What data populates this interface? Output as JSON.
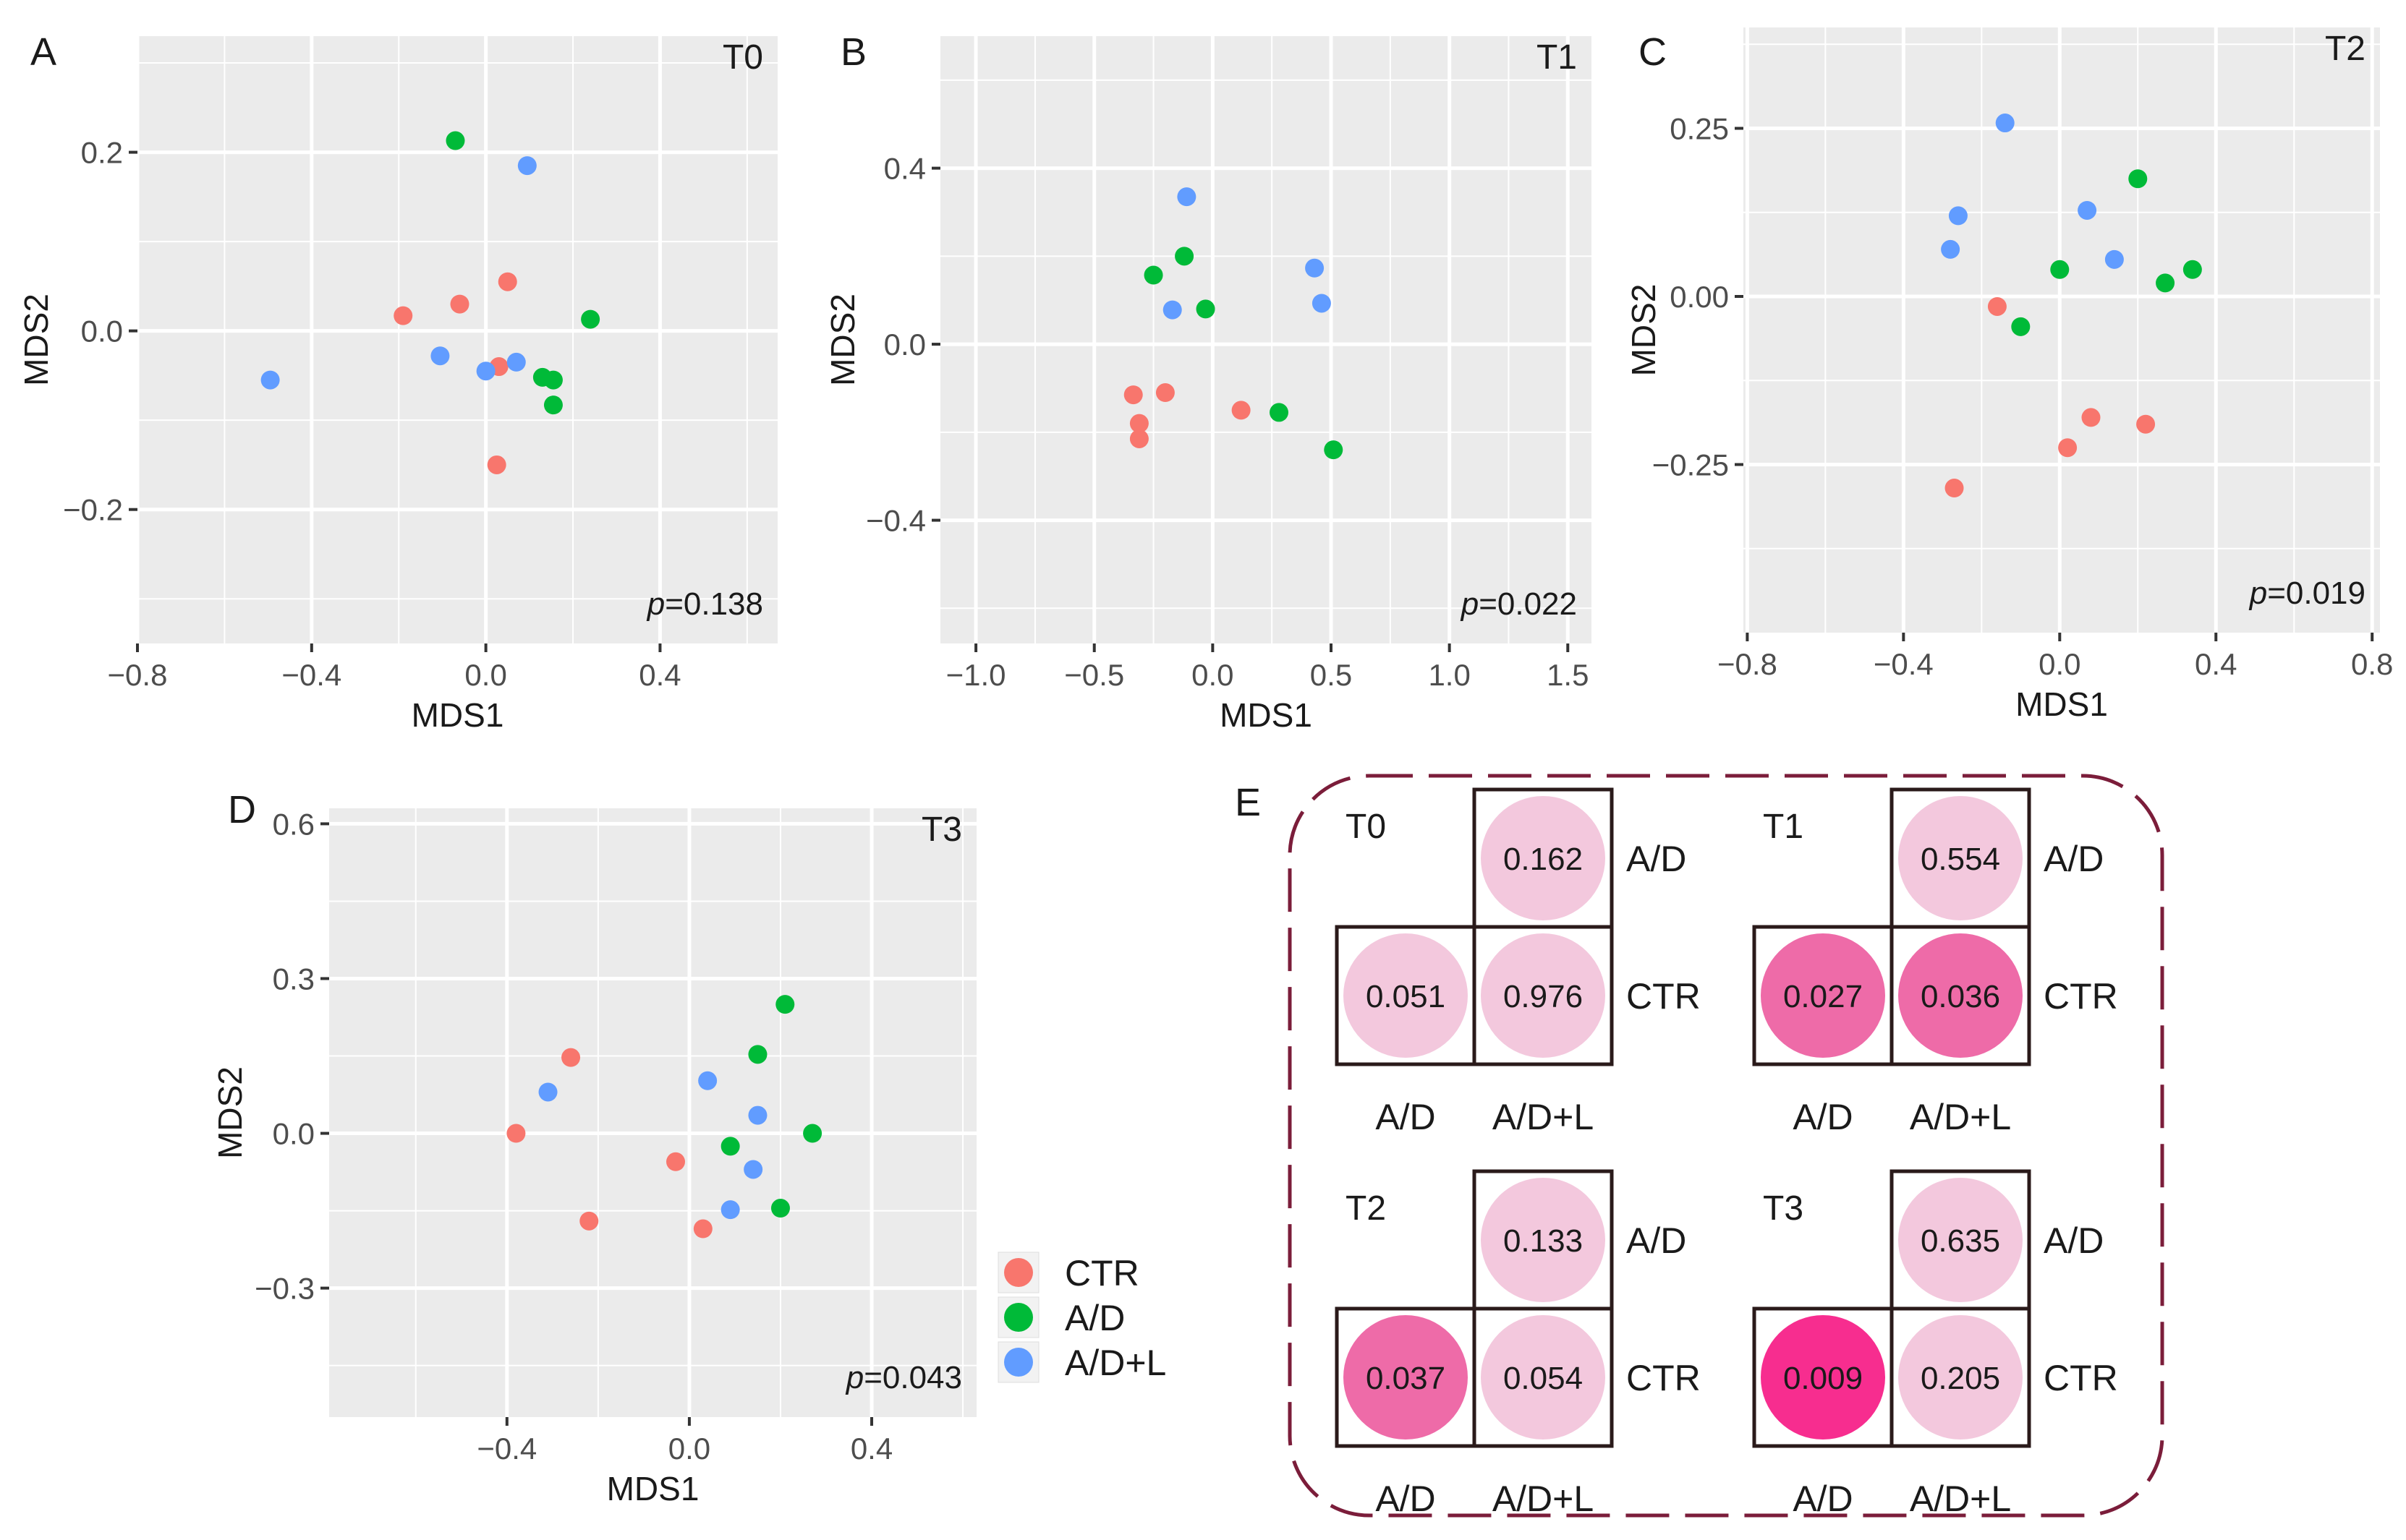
{
  "colors": {
    "CTR": "#F8766D",
    "A/D": "#00BA38",
    "A/D+L": "#619CFF"
  },
  "legend": {
    "items": [
      "CTR",
      "A/D",
      "A/D+L"
    ]
  },
  "chart_data": [
    {
      "type": "scatter",
      "panel": "A",
      "label": "T0",
      "p_prefix": "p",
      "p_value": "=0.138",
      "xlabel": "MDS1",
      "ylabel": "MDS2",
      "xlim": [
        -0.8,
        0.67
      ],
      "ylim": [
        -0.35,
        0.33
      ],
      "xticks": [
        -0.8,
        -0.4,
        0.0,
        0.4
      ],
      "xtick_labels": [
        "−0.8",
        "−0.4",
        "0.0",
        "0.4"
      ],
      "yticks": [
        -0.2,
        0.0,
        0.2
      ],
      "ytick_labels": [
        "−0.2",
        "0.0",
        "0.2"
      ],
      "series": [
        {
          "name": "CTR",
          "points": [
            [
              -0.19,
              0.017
            ],
            [
              -0.06,
              0.03
            ],
            [
              0.05,
              0.055
            ],
            [
              0.03,
              -0.04
            ],
            [
              0.025,
              -0.15
            ]
          ]
        },
        {
          "name": "A/D",
          "points": [
            [
              -0.07,
              0.213
            ],
            [
              0.24,
              0.013
            ],
            [
              0.13,
              -0.052
            ],
            [
              0.155,
              -0.055
            ],
            [
              0.155,
              -0.083
            ]
          ]
        },
        {
          "name": "A/D+L",
          "points": [
            [
              0.095,
              0.185
            ],
            [
              -0.105,
              -0.028
            ],
            [
              0.0,
              -0.045
            ],
            [
              0.07,
              -0.035
            ],
            [
              -0.495,
              -0.055
            ]
          ]
        }
      ]
    },
    {
      "type": "scatter",
      "panel": "B",
      "label": "T1",
      "p_prefix": "p",
      "p_value": "=0.022",
      "xlabel": "MDS1",
      "ylabel": "MDS2",
      "xlim": [
        -1.15,
        1.6
      ],
      "ylim": [
        -0.68,
        0.7
      ],
      "xticks": [
        -1.0,
        -0.5,
        0.0,
        0.5,
        1.0,
        1.5
      ],
      "xtick_labels": [
        "−1.0",
        "−0.5",
        "0.0",
        "0.5",
        "1.0",
        "1.5"
      ],
      "yticks": [
        -0.4,
        0.0,
        0.4
      ],
      "ytick_labels": [
        "−0.4",
        "0.0",
        "0.4"
      ],
      "series": [
        {
          "name": "CTR",
          "points": [
            [
              -0.335,
              -0.115
            ],
            [
              -0.31,
              -0.18
            ],
            [
              -0.31,
              -0.215
            ],
            [
              -0.2,
              -0.11
            ],
            [
              0.12,
              -0.15
            ]
          ]
        },
        {
          "name": "A/D",
          "points": [
            [
              -0.25,
              0.157
            ],
            [
              -0.12,
              0.2
            ],
            [
              -0.03,
              0.08
            ],
            [
              0.28,
              -0.155
            ],
            [
              0.51,
              -0.24
            ]
          ]
        },
        {
          "name": "A/D+L",
          "points": [
            [
              -0.11,
              0.335
            ],
            [
              -0.17,
              0.078
            ],
            [
              0.43,
              0.173
            ],
            [
              0.46,
              0.093
            ]
          ]
        }
      ]
    },
    {
      "type": "scatter",
      "panel": "C",
      "label": "T2",
      "p_prefix": "p",
      "p_value": "=0.019",
      "xlabel": "MDS1",
      "ylabel": "MDS2",
      "xlim": [
        -0.81,
        0.82
      ],
      "ylim": [
        -0.5,
        0.4
      ],
      "xticks": [
        -0.8,
        -0.4,
        0.0,
        0.4,
        0.8
      ],
      "xtick_labels": [
        "−0.8",
        "−0.4",
        "0.0",
        "0.4",
        "0.8"
      ],
      "yticks": [
        -0.25,
        0.0,
        0.25
      ],
      "ytick_labels": [
        "−0.25",
        "0.00",
        "0.25"
      ],
      "series": [
        {
          "name": "CTR",
          "points": [
            [
              -0.16,
              -0.015
            ],
            [
              -0.27,
              -0.285
            ],
            [
              0.02,
              -0.225
            ],
            [
              0.08,
              -0.18
            ],
            [
              0.22,
              -0.19
            ]
          ]
        },
        {
          "name": "A/D",
          "points": [
            [
              0.2,
              0.175
            ],
            [
              0.0,
              0.04
            ],
            [
              -0.1,
              -0.045
            ],
            [
              0.27,
              0.02
            ],
            [
              0.34,
              0.04
            ]
          ]
        },
        {
          "name": "A/D+L",
          "points": [
            [
              -0.14,
              0.258
            ],
            [
              -0.26,
              0.12
            ],
            [
              -0.28,
              0.07
            ],
            [
              0.07,
              0.128
            ],
            [
              0.14,
              0.055
            ]
          ]
        }
      ]
    },
    {
      "type": "scatter",
      "panel": "D",
      "label": "T3",
      "p_prefix": "p",
      "p_value": "=0.043",
      "xlabel": "MDS1",
      "ylabel": "MDS2",
      "xlim": [
        -0.79,
        0.63
      ],
      "ylim": [
        -0.55,
        0.63
      ],
      "xticks": [
        -0.4,
        0.0,
        0.4
      ],
      "xtick_labels": [
        "−0.4",
        "0.0",
        "0.4"
      ],
      "yticks": [
        -0.3,
        0.0,
        0.3,
        0.6
      ],
      "ytick_labels": [
        "−0.3",
        "0.0",
        "0.3",
        "0.6"
      ],
      "series": [
        {
          "name": "CTR",
          "points": [
            [
              -0.26,
              0.147
            ],
            [
              -0.38,
              0.0
            ],
            [
              -0.22,
              -0.17
            ],
            [
              -0.03,
              -0.055
            ],
            [
              0.03,
              -0.185
            ]
          ]
        },
        {
          "name": "A/D",
          "points": [
            [
              0.21,
              0.25
            ],
            [
              0.15,
              0.153
            ],
            [
              0.09,
              -0.025
            ],
            [
              0.27,
              0.0
            ],
            [
              0.2,
              -0.145
            ]
          ]
        },
        {
          "name": "A/D+L",
          "points": [
            [
              -0.31,
              0.08
            ],
            [
              0.04,
              0.102
            ],
            [
              0.15,
              0.035
            ],
            [
              0.14,
              -0.07
            ],
            [
              0.09,
              -0.148
            ]
          ]
        }
      ]
    }
  ],
  "panel_e": {
    "letter": "E",
    "matrices": [
      {
        "time": "T0",
        "ad_vs_adl": "0.162",
        "ctr_vs_ad": "0.051",
        "ctr_vs_adl": "0.976",
        "row_top": "A/D",
        "row_bottom": "CTR",
        "col_left": "A/D",
        "col_right": "A/D+L"
      },
      {
        "time": "T1",
        "ad_vs_adl": "0.554",
        "ctr_vs_ad": "0.027",
        "ctr_vs_adl": "0.036",
        "row_top": "A/D",
        "row_bottom": "CTR",
        "col_left": "A/D",
        "col_right": "A/D+L"
      },
      {
        "time": "T2",
        "ad_vs_adl": "0.133",
        "ctr_vs_ad": "0.037",
        "ctr_vs_adl": "0.054",
        "row_top": "A/D",
        "row_bottom": "CTR",
        "col_left": "A/D",
        "col_right": "A/D+L"
      },
      {
        "time": "T3",
        "ad_vs_adl": "0.635",
        "ctr_vs_ad": "0.009",
        "ctr_vs_adl": "0.205",
        "row_top": "A/D",
        "row_bottom": "CTR",
        "col_left": "A/D",
        "col_right": "A/D+L"
      }
    ]
  }
}
